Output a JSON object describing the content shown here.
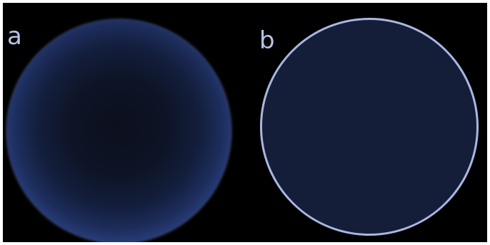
{
  "panels": [
    {
      "label": "a",
      "disk": {
        "center_color": "#0b0f1d",
        "edge_color": "#5275d4",
        "rim_color": "#a8b8e8"
      }
    },
    {
      "label": "b",
      "disk": {
        "fill_color": "#141e38",
        "border_color": "#aab6e2"
      }
    }
  ],
  "colors": {
    "background": "#000000",
    "label_color": "#b7c3e6"
  }
}
